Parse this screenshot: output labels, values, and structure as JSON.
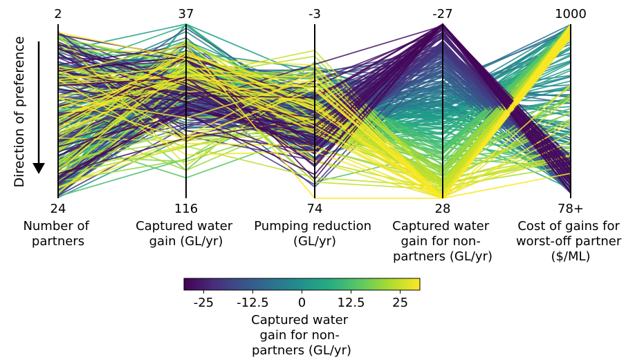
{
  "chart_data": {
    "type": "parallel-coordinates",
    "y_axis_label": "Direction of preference",
    "axes": [
      {
        "name": "Number of partners",
        "label_lines": [
          "Number of",
          "partners"
        ],
        "top": "2",
        "bottom": "24",
        "top_value": 2,
        "bottom_value": 24
      },
      {
        "name": "Captured water gain (GL/yr)",
        "label_lines": [
          "Captured water",
          "gain (GL/yr)"
        ],
        "top": "37",
        "bottom": "116",
        "top_value": 37,
        "bottom_value": 116
      },
      {
        "name": "Pumping reduction (GL/yr)",
        "label_lines": [
          "Pumping reduction",
          "(GL/yr)"
        ],
        "top": "-3",
        "bottom": "74",
        "top_value": -3,
        "bottom_value": 74
      },
      {
        "name": "Captured water gain for non-partners (GL/yr)",
        "label_lines": [
          "Captured water",
          "gain for non-",
          "partners (GL/yr)"
        ],
        "top": "-27",
        "bottom": "28",
        "top_value": -27,
        "bottom_value": 28
      },
      {
        "name": "Cost of gains for worst-off partner ($/ML)",
        "label_lines": [
          "Cost of gains for",
          "worst-off partner",
          "($/ML)"
        ],
        "top": "1000",
        "bottom": "78+",
        "top_value": 1000,
        "bottom_value": 78
      }
    ],
    "colorbar": {
      "colormap": "viridis",
      "min": -30,
      "max": 30,
      "ticks": [
        -25,
        -12.5,
        0,
        12.5,
        25
      ],
      "tick_labels": [
        "-25",
        "-12.5",
        "0",
        "12.5",
        "25"
      ],
      "label_lines": [
        "Captured water",
        "gain for non-",
        "partners (GL/yr)"
      ]
    },
    "line_count": 300,
    "color_variable": "Captured water gain for non-partners (GL/yr)"
  }
}
